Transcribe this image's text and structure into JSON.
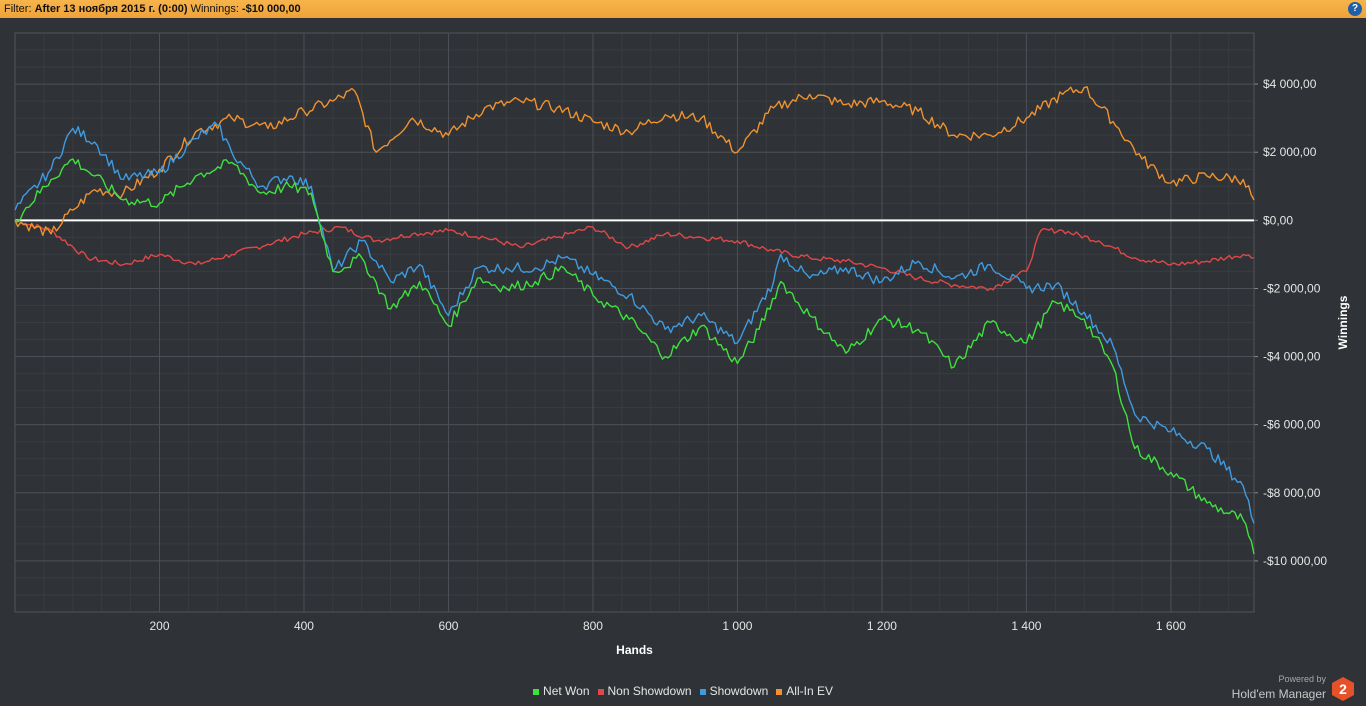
{
  "filter": {
    "label": "Filter:",
    "value": "After 13 ноября 2015 г. (0:00)",
    "winnings_label": "Winnings:",
    "winnings_value": "-$10 000,00"
  },
  "help_label": "?",
  "branding": {
    "powered_by": "Powered by",
    "product": "Hold'em Manager",
    "logo_text": "2"
  },
  "colors": {
    "background": "#2f3236",
    "grid": "#474b50",
    "zero_line": "#ffffff",
    "net_won": "#3fe03f",
    "non_showdown": "#e04848",
    "showdown": "#3f9be0",
    "all_in_ev": "#f0922e"
  },
  "chart_data": {
    "type": "line",
    "xlabel": "Hands",
    "ylabel": "Winnings",
    "xlim": [
      0,
      1715
    ],
    "ylim": [
      -11500,
      5500
    ],
    "x_ticks": [
      200,
      400,
      600,
      800,
      1000,
      1200,
      1400,
      1600
    ],
    "x_tick_labels": [
      "200",
      "400",
      "600",
      "800",
      "1 000",
      "1 200",
      "1 400",
      "1 600"
    ],
    "y_ticks": [
      4000,
      2000,
      0,
      -2000,
      -4000,
      -6000,
      -8000,
      -10000
    ],
    "y_tick_labels": [
      "$4 000,00",
      "$2 000,00",
      "$0,00",
      "-$2 000,00",
      "-$4 000,00",
      "-$6 000,00",
      "-$8 000,00",
      "-$10 000,00"
    ],
    "grid": true,
    "legend_position": "bottom-center",
    "series": [
      {
        "name": "Net Won",
        "color": "#3fe03f",
        "x": [
          0,
          50,
          80,
          110,
          150,
          200,
          250,
          300,
          340,
          380,
          410,
          440,
          480,
          520,
          560,
          600,
          640,
          680,
          720,
          760,
          800,
          850,
          900,
          950,
          1000,
          1030,
          1060,
          1100,
          1150,
          1200,
          1250,
          1300,
          1350,
          1400,
          1440,
          1480,
          1520,
          1550,
          1600,
          1650,
          1700,
          1715
        ],
        "values": [
          0,
          1200,
          1800,
          1300,
          600,
          500,
          1300,
          1700,
          800,
          1000,
          800,
          -1500,
          -1100,
          -2600,
          -1800,
          -3100,
          -1700,
          -2000,
          -1800,
          -1400,
          -2200,
          -2900,
          -4000,
          -3100,
          -4200,
          -3200,
          -1800,
          -2800,
          -3900,
          -2900,
          -3200,
          -4300,
          -3000,
          -3600,
          -2400,
          -2900,
          -4300,
          -6700,
          -7400,
          -8300,
          -8800,
          -9800
        ]
      },
      {
        "name": "Non Showdown",
        "color": "#e04848",
        "x": [
          0,
          50,
          100,
          150,
          200,
          250,
          300,
          350,
          400,
          450,
          500,
          550,
          600,
          650,
          700,
          750,
          800,
          850,
          900,
          950,
          1000,
          1050,
          1100,
          1150,
          1200,
          1250,
          1300,
          1350,
          1400,
          1420,
          1450,
          1500,
          1550,
          1600,
          1650,
          1700,
          1715
        ],
        "values": [
          0,
          -300,
          -1100,
          -1300,
          -1000,
          -1300,
          -1000,
          -700,
          -400,
          -200,
          -600,
          -400,
          -300,
          -500,
          -800,
          -500,
          -200,
          -800,
          -400,
          -500,
          -600,
          -900,
          -1100,
          -1200,
          -1400,
          -1700,
          -1900,
          -2000,
          -1500,
          -300,
          -300,
          -600,
          -1100,
          -1300,
          -1200,
          -1000,
          -1100
        ]
      },
      {
        "name": "Showdown",
        "color": "#3f9be0",
        "x": [
          0,
          50,
          80,
          110,
          150,
          200,
          250,
          280,
          300,
          340,
          380,
          410,
          440,
          480,
          520,
          560,
          600,
          640,
          680,
          720,
          760,
          800,
          850,
          900,
          950,
          1000,
          1050,
          1060,
          1100,
          1150,
          1200,
          1250,
          1300,
          1350,
          1400,
          1440,
          1480,
          1520,
          1550,
          1600,
          1650,
          1700,
          1715
        ],
        "values": [
          300,
          1500,
          2700,
          2300,
          1200,
          1400,
          2400,
          2800,
          2000,
          1000,
          1300,
          1000,
          -1500,
          -600,
          -1800,
          -1300,
          -2800,
          -1400,
          -1400,
          -1400,
          -1100,
          -1600,
          -2200,
          -3200,
          -2800,
          -3600,
          -1800,
          -1000,
          -1700,
          -1400,
          -1800,
          -1200,
          -1700,
          -1300,
          -2000,
          -1900,
          -2700,
          -3700,
          -5700,
          -6200,
          -6700,
          -7800,
          -8900
        ]
      },
      {
        "name": "All-In EV",
        "color": "#f0922e",
        "x": [
          0,
          50,
          80,
          110,
          150,
          200,
          250,
          300,
          350,
          400,
          440,
          470,
          500,
          550,
          600,
          650,
          700,
          750,
          800,
          850,
          900,
          950,
          1000,
          1050,
          1100,
          1150,
          1200,
          1250,
          1300,
          1350,
          1400,
          1450,
          1480,
          1520,
          1560,
          1600,
          1650,
          1700,
          1715
        ],
        "values": [
          0,
          -400,
          300,
          900,
          800,
          1500,
          2600,
          3000,
          2700,
          3200,
          3500,
          3800,
          2000,
          3000,
          2500,
          3300,
          3500,
          3300,
          2900,
          2600,
          3100,
          3000,
          2000,
          3300,
          3700,
          3400,
          3500,
          3200,
          2500,
          2500,
          3000,
          3700,
          3900,
          2900,
          1800,
          1100,
          1300,
          1200,
          600
        ]
      }
    ]
  }
}
